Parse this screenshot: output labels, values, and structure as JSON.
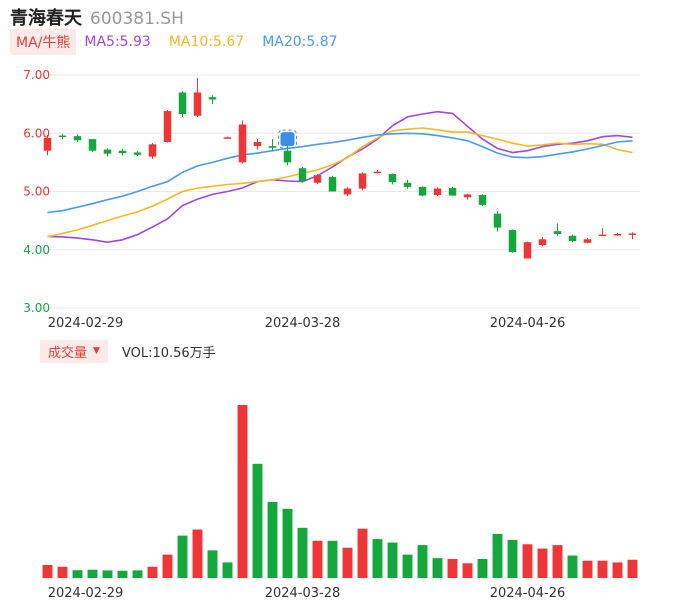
{
  "stock": {
    "name": "青海春天",
    "code": "600381.SH"
  },
  "ma_legend": {
    "toggle_label": "MA/牛熊",
    "items": [
      {
        "label": "MA5:5.93",
        "color": "#a046e6"
      },
      {
        "label": "MA10:5.67",
        "color": "#f5b921"
      },
      {
        "label": "MA20:5.87",
        "color": "#4a9bea"
      }
    ]
  },
  "volume_legend": {
    "toggle_label": "成交量",
    "value_label": "VOL:10.56万手"
  },
  "colors": {
    "up": "#ef3535",
    "down": "#14a83c",
    "grid": "#e9e9e9",
    "axis_text": "#333333"
  },
  "chart_data": [
    {
      "type": "candlestick",
      "ylim": [
        3.0,
        7.0
      ],
      "y_ticks": [
        "7.00",
        "6.00",
        "5.00",
        "4.00",
        "3.00"
      ],
      "x_tick_labels": [
        {
          "index": 0,
          "label": "2024-02-29"
        },
        {
          "index": 17,
          "label": "2024-03-28"
        },
        {
          "index": 32,
          "label": "2024-04-26"
        }
      ],
      "candles": [
        {
          "o": 5.7,
          "h": 5.97,
          "l": 5.62,
          "c": 5.92
        },
        {
          "o": 5.96,
          "h": 5.99,
          "l": 5.9,
          "c": 5.94
        },
        {
          "o": 5.95,
          "h": 5.98,
          "l": 5.85,
          "c": 5.88
        },
        {
          "o": 5.9,
          "h": 5.9,
          "l": 5.68,
          "c": 5.7
        },
        {
          "o": 5.72,
          "h": 5.74,
          "l": 5.6,
          "c": 5.65
        },
        {
          "o": 5.7,
          "h": 5.73,
          "l": 5.62,
          "c": 5.66
        },
        {
          "o": 5.67,
          "h": 5.69,
          "l": 5.61,
          "c": 5.63
        },
        {
          "o": 5.6,
          "h": 5.83,
          "l": 5.56,
          "c": 5.81
        },
        {
          "o": 5.85,
          "h": 6.4,
          "l": 5.84,
          "c": 6.38
        },
        {
          "o": 6.7,
          "h": 6.72,
          "l": 6.28,
          "c": 6.33
        },
        {
          "o": 6.3,
          "h": 6.95,
          "l": 6.28,
          "c": 6.7
        },
        {
          "o": 6.62,
          "h": 6.65,
          "l": 6.5,
          "c": 6.58
        },
        {
          "o": 5.92,
          "h": 5.94,
          "l": 5.91,
          "c": 5.93
        },
        {
          "o": 5.5,
          "h": 6.22,
          "l": 5.48,
          "c": 6.15
        },
        {
          "o": 5.78,
          "h": 5.9,
          "l": 5.72,
          "c": 5.85
        },
        {
          "o": 5.78,
          "h": 5.9,
          "l": 5.7,
          "c": 5.75
        },
        {
          "o": 5.7,
          "h": 5.8,
          "l": 5.45,
          "c": 5.5
        },
        {
          "o": 5.4,
          "h": 5.42,
          "l": 5.15,
          "c": 5.18
        },
        {
          "o": 5.15,
          "h": 5.3,
          "l": 5.13,
          "c": 5.28
        },
        {
          "o": 5.25,
          "h": 5.27,
          "l": 5.0,
          "c": 5.0
        },
        {
          "o": 4.95,
          "h": 5.07,
          "l": 4.92,
          "c": 5.05
        },
        {
          "o": 5.05,
          "h": 5.33,
          "l": 5.02,
          "c": 5.31
        },
        {
          "o": 5.33,
          "h": 5.37,
          "l": 5.31,
          "c": 5.34
        },
        {
          "o": 5.3,
          "h": 5.31,
          "l": 5.12,
          "c": 5.16
        },
        {
          "o": 5.15,
          "h": 5.2,
          "l": 5.05,
          "c": 5.08
        },
        {
          "o": 5.08,
          "h": 5.09,
          "l": 4.92,
          "c": 4.93
        },
        {
          "o": 4.94,
          "h": 5.07,
          "l": 4.92,
          "c": 5.05
        },
        {
          "o": 5.06,
          "h": 5.08,
          "l": 4.93,
          "c": 4.93
        },
        {
          "o": 4.9,
          "h": 4.96,
          "l": 4.86,
          "c": 4.95
        },
        {
          "o": 4.94,
          "h": 4.95,
          "l": 4.75,
          "c": 4.77
        },
        {
          "o": 4.62,
          "h": 4.66,
          "l": 4.31,
          "c": 4.38
        },
        {
          "o": 4.34,
          "h": 4.35,
          "l": 3.95,
          "c": 3.96
        },
        {
          "o": 3.85,
          "h": 4.14,
          "l": 3.85,
          "c": 4.13
        },
        {
          "o": 4.08,
          "h": 4.22,
          "l": 4.06,
          "c": 4.18
        },
        {
          "o": 4.32,
          "h": 4.45,
          "l": 4.24,
          "c": 4.27
        },
        {
          "o": 4.24,
          "h": 4.26,
          "l": 4.13,
          "c": 4.15
        },
        {
          "o": 4.12,
          "h": 4.2,
          "l": 4.11,
          "c": 4.18
        },
        {
          "o": 4.25,
          "h": 4.37,
          "l": 4.24,
          "c": 4.26
        },
        {
          "o": 4.26,
          "h": 4.29,
          "l": 4.24,
          "c": 4.27
        },
        {
          "o": 4.26,
          "h": 4.3,
          "l": 4.18,
          "c": 4.28
        }
      ],
      "series": [
        {
          "name": "MA5",
          "color": "#a046e6",
          "values": [
            4.23,
            4.22,
            4.2,
            4.17,
            4.13,
            4.17,
            4.26,
            4.39,
            4.53,
            4.76,
            4.87,
            4.95,
            5.0,
            5.06,
            5.17,
            5.2,
            5.18,
            5.17,
            5.27,
            5.42,
            5.59,
            5.73,
            5.9,
            6.13,
            6.28,
            6.33,
            6.37,
            6.34,
            6.12,
            5.9,
            5.74,
            5.67,
            5.7,
            5.77,
            5.81,
            5.83,
            5.87,
            5.94,
            5.96,
            5.93
          ]
        },
        {
          "name": "MA10",
          "color": "#f5b921",
          "values": [
            4.22,
            4.28,
            4.34,
            4.42,
            4.5,
            4.58,
            4.65,
            4.75,
            4.87,
            5.0,
            5.06,
            5.09,
            5.12,
            5.14,
            5.17,
            5.2,
            5.25,
            5.31,
            5.37,
            5.46,
            5.58,
            5.77,
            5.92,
            6.04,
            6.07,
            6.09,
            6.06,
            6.02,
            6.02,
            5.96,
            5.9,
            5.83,
            5.78,
            5.8,
            5.83,
            5.81,
            5.82,
            5.81,
            5.72,
            5.67
          ]
        },
        {
          "name": "MA20",
          "color": "#4a9bea",
          "values": [
            4.64,
            4.67,
            4.73,
            4.79,
            4.86,
            4.92,
            5.0,
            5.09,
            5.17,
            5.33,
            5.44,
            5.5,
            5.57,
            5.63,
            5.66,
            5.7,
            5.74,
            5.77,
            5.81,
            5.84,
            5.88,
            5.93,
            5.97,
            5.99,
            6.0,
            5.99,
            5.96,
            5.92,
            5.87,
            5.77,
            5.66,
            5.59,
            5.58,
            5.6,
            5.64,
            5.68,
            5.73,
            5.79,
            5.85,
            5.87
          ]
        }
      ]
    },
    {
      "type": "bar",
      "title": "成交量",
      "x_tick_labels": [
        {
          "index": 0,
          "label": "2024-02-29"
        },
        {
          "index": 17,
          "label": "2024-03-28"
        },
        {
          "index": 32,
          "label": "2024-04-26"
        }
      ],
      "units": "万手",
      "values": [
        7.5,
        6.5,
        4.5,
        4.8,
        4.4,
        4.2,
        4.4,
        6.5,
        13.5,
        24.5,
        28.0,
        16.0,
        9.0,
        100.0,
        66.0,
        44.0,
        40.0,
        29.0,
        21.5,
        21.5,
        17.5,
        28.5,
        22.5,
        20.5,
        13.5,
        19.0,
        11.5,
        11.0,
        8.5,
        11.0,
        25.5,
        22.0,
        19.5,
        17.0,
        19.0,
        13.0,
        10.0,
        10.0,
        9.0,
        10.56
      ],
      "directions": [
        "up",
        "up",
        "down",
        "down",
        "down",
        "down",
        "down",
        "up",
        "up",
        "down",
        "up",
        "down",
        "down",
        "up",
        "down",
        "down",
        "down",
        "down",
        "up",
        "down",
        "up",
        "up",
        "down",
        "down",
        "down",
        "down",
        "down",
        "up",
        "up",
        "down",
        "down",
        "down",
        "up",
        "up",
        "up",
        "down",
        "up",
        "up",
        "up",
        "up"
      ]
    }
  ]
}
